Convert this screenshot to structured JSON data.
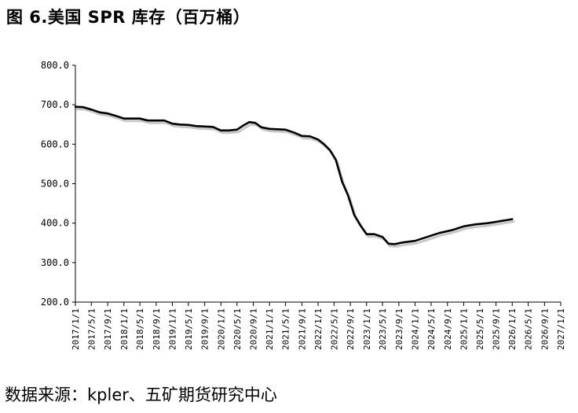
{
  "title": "图 6.美国 SPR 库存（百万桶）",
  "source": "数据来源：kpler、五矿期货研究中心",
  "chart_data": {
    "type": "line",
    "title": "图 6.美国 SPR 库存（百万桶）",
    "xlabel": "",
    "ylabel": "",
    "ylim": [
      200,
      800
    ],
    "y_ticks": [
      "800.0",
      "700.0",
      "600.0",
      "500.0",
      "400.0",
      "300.0",
      "200.0"
    ],
    "x_range": [
      "2017-01-01",
      "2027-01-01"
    ],
    "x_ticks": [
      "2017/1/1",
      "2017/5/1",
      "2017/9/1",
      "2018/1/1",
      "2018/5/1",
      "2018/9/1",
      "2019/1/1",
      "2019/5/1",
      "2019/9/1",
      "2020/1/1",
      "2020/5/1",
      "2020/9/1",
      "2021/1/1",
      "2021/5/1",
      "2021/9/1",
      "2022/1/1",
      "2022/5/1",
      "2022/9/1",
      "2023/1/1",
      "2023/5/1",
      "2023/9/1",
      "2024/1/1",
      "2024/5/1",
      "2024/9/1",
      "2025/1/1",
      "2025/5/1",
      "2025/9/1",
      "2026/1/1",
      "2026/5/1",
      "2026/9/1",
      "2027/1/1"
    ],
    "grid": false,
    "legend": "none",
    "series": [
      {
        "color": "#000000",
        "points": [
          [
            "2017-01-01",
            695
          ],
          [
            "2017-03-01",
            694
          ],
          [
            "2017-05-01",
            688
          ],
          [
            "2017-07-01",
            681
          ],
          [
            "2017-09-01",
            678
          ],
          [
            "2017-11-01",
            672
          ],
          [
            "2018-01-01",
            665
          ],
          [
            "2018-03-01",
            665
          ],
          [
            "2018-05-01",
            665
          ],
          [
            "2018-07-01",
            660
          ],
          [
            "2018-09-01",
            660
          ],
          [
            "2018-11-01",
            660
          ],
          [
            "2019-01-01",
            652
          ],
          [
            "2019-03-01",
            650
          ],
          [
            "2019-05-01",
            649
          ],
          [
            "2019-07-01",
            646
          ],
          [
            "2019-09-01",
            645
          ],
          [
            "2019-11-01",
            644
          ],
          [
            "2020-01-01",
            635
          ],
          [
            "2020-03-01",
            635
          ],
          [
            "2020-05-01",
            637
          ],
          [
            "2020-06-15",
            647
          ],
          [
            "2020-08-01",
            656
          ],
          [
            "2020-09-15",
            654
          ],
          [
            "2020-11-01",
            643
          ],
          [
            "2021-01-01",
            639
          ],
          [
            "2021-03-01",
            638
          ],
          [
            "2021-05-01",
            637
          ],
          [
            "2021-07-01",
            630
          ],
          [
            "2021-09-01",
            621
          ],
          [
            "2021-11-01",
            620
          ],
          [
            "2022-01-01",
            612
          ],
          [
            "2022-02-15",
            600
          ],
          [
            "2022-04-01",
            585
          ],
          [
            "2022-05-15",
            560
          ],
          [
            "2022-07-01",
            505
          ],
          [
            "2022-08-15",
            470
          ],
          [
            "2022-10-01",
            420
          ],
          [
            "2022-11-15",
            395
          ],
          [
            "2023-01-01",
            372
          ],
          [
            "2023-03-01",
            372
          ],
          [
            "2023-05-01",
            365
          ],
          [
            "2023-06-15",
            348
          ],
          [
            "2023-08-01",
            347
          ],
          [
            "2023-10-01",
            351
          ],
          [
            "2024-01-01",
            355
          ],
          [
            "2024-04-01",
            365
          ],
          [
            "2024-07-01",
            375
          ],
          [
            "2024-10-01",
            382
          ],
          [
            "2025-01-01",
            392
          ],
          [
            "2025-04-01",
            397
          ],
          [
            "2025-07-01",
            400
          ],
          [
            "2025-10-01",
            405
          ],
          [
            "2026-01-01",
            410
          ]
        ]
      }
    ]
  }
}
